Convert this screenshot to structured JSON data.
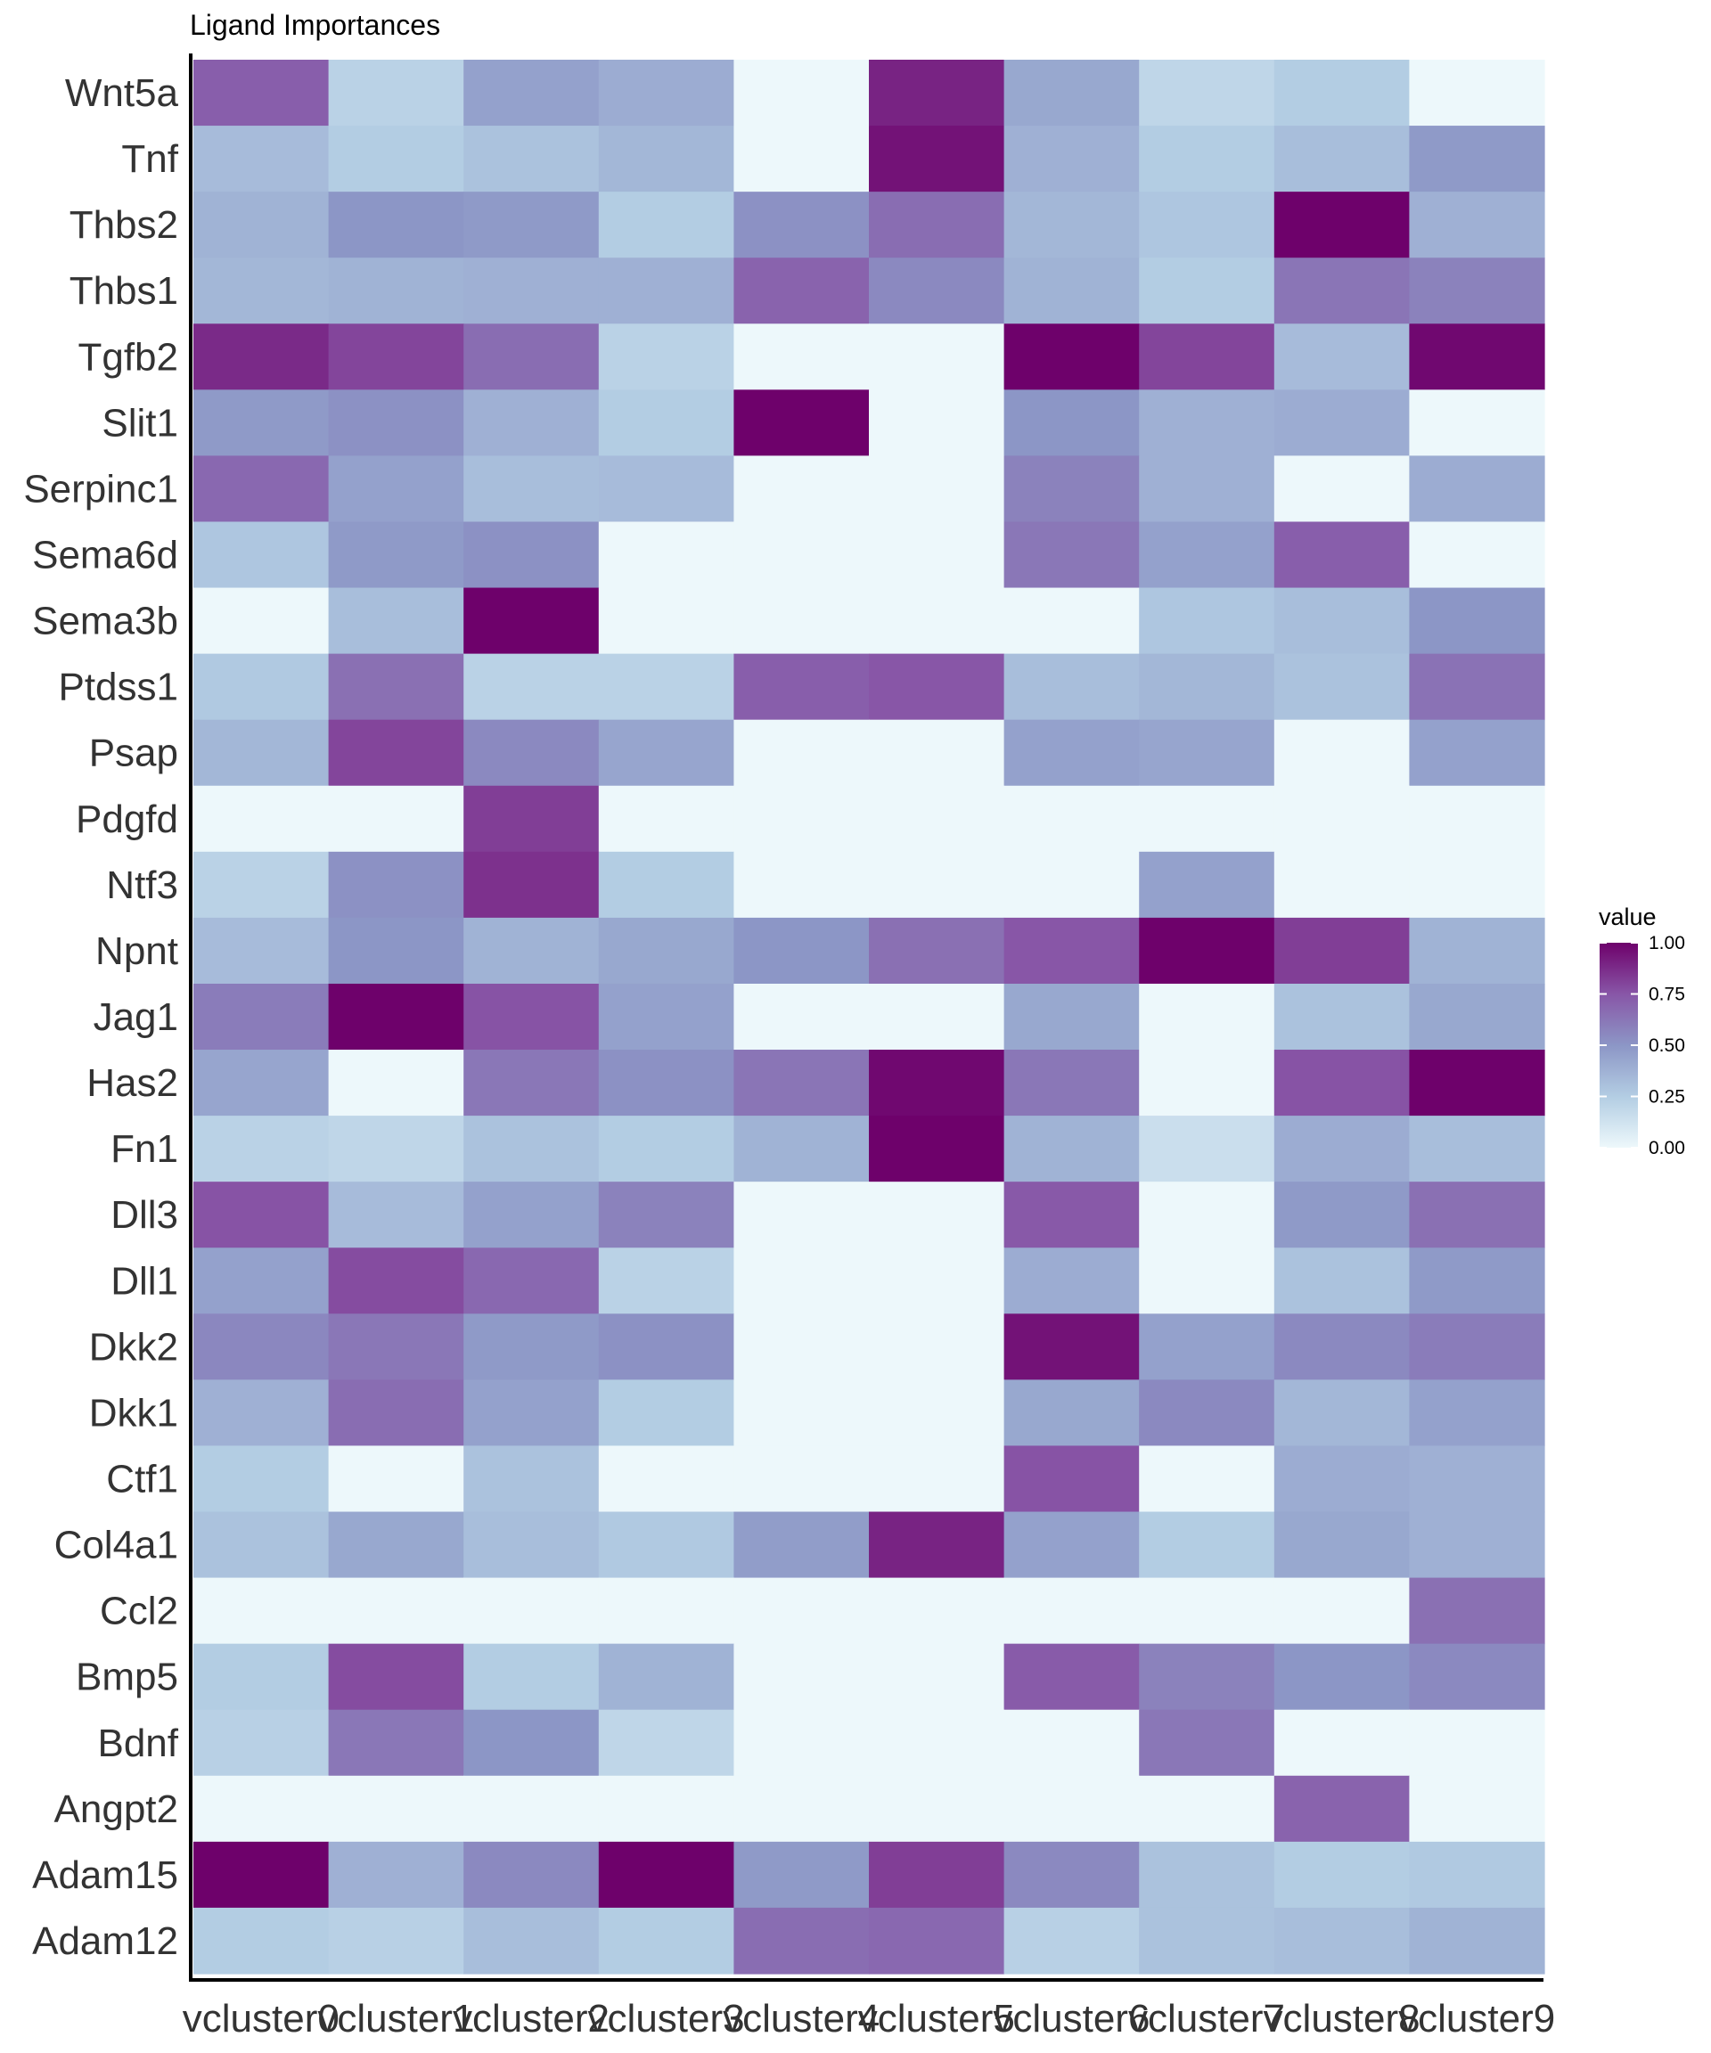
{
  "chart_data": {
    "type": "heatmap",
    "title": "Ligand Importances",
    "xlabel": "",
    "ylabel": "",
    "legend": {
      "title": "value",
      "position": "right",
      "ticks": [
        "1.00",
        "0.75",
        "0.50",
        "0.25",
        "0.00"
      ],
      "range": [
        0,
        1
      ]
    },
    "colors": {
      "low": "#edf8fb",
      "mid1": "#b3cde3",
      "mid2": "#8c96c6",
      "mid3": "#8856a7",
      "high": "#6e016b"
    },
    "x": [
      "vcluster0",
      "vcluster1",
      "vcluster2",
      "vcluster3",
      "vcluster4",
      "vcluster5",
      "vcluster6",
      "vcluster7",
      "vcluster8",
      "vcluster9"
    ],
    "y": [
      "Wnt5a",
      "Tnf",
      "Thbs2",
      "Thbs1",
      "Tgfb2",
      "Slit1",
      "Serpinc1",
      "Sema6d",
      "Sema3b",
      "Ptdss1",
      "Psap",
      "Pdgfd",
      "Ntf3",
      "Npnt",
      "Jag1",
      "Has2",
      "Fn1",
      "Dll3",
      "Dll1",
      "Dkk2",
      "Dkk1",
      "Ctf1",
      "Col4a1",
      "Ccl2",
      "Bmp5",
      "Bdnf",
      "Angpt2",
      "Adam15",
      "Adam12"
    ],
    "values": [
      [
        0.72,
        0.22,
        0.45,
        0.4,
        0.0,
        0.9,
        0.42,
        0.2,
        0.25,
        0.0
      ],
      [
        0.33,
        0.25,
        0.3,
        0.35,
        0.0,
        0.95,
        0.38,
        0.25,
        0.32,
        0.48
      ],
      [
        0.37,
        0.5,
        0.48,
        0.25,
        0.52,
        0.66,
        0.35,
        0.28,
        1.0,
        0.38
      ],
      [
        0.35,
        0.37,
        0.38,
        0.38,
        0.7,
        0.55,
        0.37,
        0.25,
        0.63,
        0.58
      ],
      [
        0.88,
        0.8,
        0.66,
        0.22,
        0.0,
        0.0,
        1.0,
        0.8,
        0.33,
        0.98
      ],
      [
        0.48,
        0.52,
        0.38,
        0.25,
        1.0,
        0.0,
        0.5,
        0.38,
        0.4,
        0.0
      ],
      [
        0.68,
        0.45,
        0.32,
        0.33,
        0.0,
        0.0,
        0.58,
        0.38,
        0.0,
        0.4
      ],
      [
        0.28,
        0.48,
        0.52,
        0.0,
        0.0,
        0.0,
        0.62,
        0.45,
        0.72,
        0.0
      ],
      [
        0.0,
        0.32,
        1.0,
        0.0,
        0.0,
        0.0,
        0.0,
        0.28,
        0.32,
        0.5
      ],
      [
        0.27,
        0.65,
        0.22,
        0.22,
        0.72,
        0.75,
        0.32,
        0.35,
        0.3,
        0.64
      ],
      [
        0.35,
        0.8,
        0.55,
        0.43,
        0.0,
        0.0,
        0.45,
        0.43,
        0.0,
        0.45
      ],
      [
        0.0,
        0.0,
        0.82,
        0.0,
        0.0,
        0.0,
        0.0,
        0.0,
        0.0,
        0.0
      ],
      [
        0.22,
        0.52,
        0.86,
        0.25,
        0.0,
        0.0,
        0.0,
        0.45,
        0.0,
        0.0
      ],
      [
        0.33,
        0.5,
        0.37,
        0.42,
        0.5,
        0.65,
        0.75,
        1.0,
        0.82,
        0.37
      ],
      [
        0.6,
        1.0,
        0.76,
        0.45,
        0.0,
        0.0,
        0.42,
        0.0,
        0.3,
        0.42
      ],
      [
        0.43,
        0.0,
        0.62,
        0.52,
        0.63,
        0.98,
        0.62,
        0.0,
        0.76,
        1.0
      ],
      [
        0.22,
        0.2,
        0.3,
        0.25,
        0.37,
        1.0,
        0.37,
        0.15,
        0.4,
        0.32
      ],
      [
        0.76,
        0.33,
        0.45,
        0.58,
        0.0,
        0.0,
        0.74,
        0.0,
        0.48,
        0.65
      ],
      [
        0.45,
        0.78,
        0.68,
        0.22,
        0.0,
        0.0,
        0.4,
        0.0,
        0.3,
        0.48
      ],
      [
        0.56,
        0.62,
        0.48,
        0.52,
        0.0,
        0.0,
        0.95,
        0.45,
        0.55,
        0.6
      ],
      [
        0.38,
        0.66,
        0.45,
        0.25,
        0.0,
        0.0,
        0.42,
        0.55,
        0.35,
        0.45
      ],
      [
        0.25,
        0.0,
        0.3,
        0.0,
        0.0,
        0.0,
        0.76,
        0.0,
        0.4,
        0.38
      ],
      [
        0.3,
        0.42,
        0.32,
        0.27,
        0.47,
        0.9,
        0.45,
        0.25,
        0.42,
        0.38
      ],
      [
        0.0,
        0.0,
        0.0,
        0.0,
        0.0,
        0.0,
        0.0,
        0.0,
        0.0,
        0.65
      ],
      [
        0.25,
        0.78,
        0.25,
        0.37,
        0.0,
        0.0,
        0.73,
        0.58,
        0.5,
        0.55
      ],
      [
        0.23,
        0.62,
        0.5,
        0.2,
        0.0,
        0.0,
        0.0,
        0.62,
        0.0,
        0.0
      ],
      [
        0.0,
        0.0,
        0.0,
        0.0,
        0.0,
        0.0,
        0.0,
        0.0,
        0.7,
        0.0
      ],
      [
        1.0,
        0.38,
        0.55,
        1.0,
        0.48,
        0.82,
        0.55,
        0.3,
        0.25,
        0.27
      ],
      [
        0.25,
        0.23,
        0.32,
        0.25,
        0.66,
        0.68,
        0.23,
        0.3,
        0.32,
        0.37
      ]
    ]
  }
}
